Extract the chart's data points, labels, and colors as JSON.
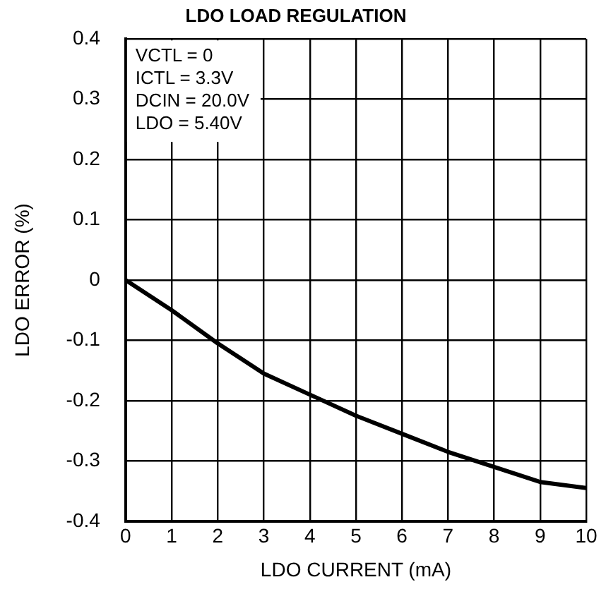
{
  "chart_data": {
    "type": "line",
    "title": "LDO LOAD REGULATION",
    "xlabel": "LDO CURRENT (mA)",
    "ylabel": "LDO ERROR (%)",
    "x": [
      0,
      1,
      2,
      3,
      4,
      5,
      6,
      7,
      8,
      9,
      10
    ],
    "series": [
      {
        "color": "#000000",
        "values": [
          0,
          -0.05,
          -0.105,
          -0.155,
          -0.19,
          -0.225,
          -0.255,
          -0.285,
          -0.31,
          -0.335,
          -0.345
        ]
      }
    ],
    "xlim": [
      0,
      10
    ],
    "xticks": [
      0,
      1,
      2,
      3,
      4,
      5,
      6,
      7,
      8,
      9,
      10
    ],
    "ylim": [
      -0.4,
      0.4
    ],
    "yticks": [
      -0.4,
      -0.3,
      -0.2,
      -0.1,
      0,
      0.1,
      0.2,
      0.3,
      0.4
    ],
    "grid": true,
    "annotations": [
      "VCTL = 0",
      "ICTL = 3.3V",
      "DCIN = 20.0V",
      "LDO = 5.40V"
    ]
  }
}
